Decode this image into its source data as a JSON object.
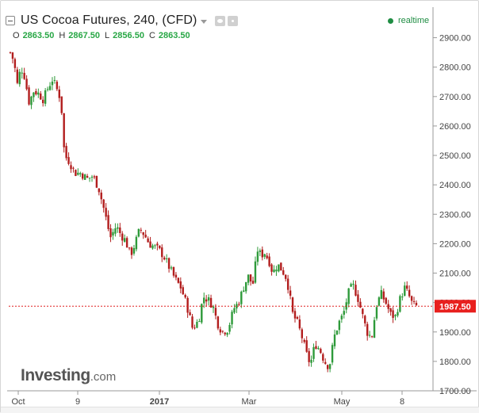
{
  "header": {
    "title": "US Cocoa Futures, 240, (CFD)",
    "status": "realtime"
  },
  "ohlc": {
    "open_label": "O",
    "open": "2863.50",
    "high_label": "H",
    "high": "2867.50",
    "low_label": "L",
    "low": "2856.50",
    "close_label": "C",
    "close": "2863.50"
  },
  "watermark": {
    "brand": "Investing",
    "suffix": ".com"
  },
  "colors": {
    "up": "#2e9a3a",
    "down": "#b21d1d",
    "price_line": "#e02020",
    "price_tag": "#e8201e",
    "status": "#1f8d43"
  },
  "chart_data": {
    "type": "candlestick",
    "title": "US Cocoa Futures, 240, (CFD)",
    "ylim": [
      1700,
      2950
    ],
    "y_ticks": [
      "2900.00",
      "2800.00",
      "2700.00",
      "2600.00",
      "2500.00",
      "2400.00",
      "2300.00",
      "2200.00",
      "2100.00",
      "2000.00",
      "1900.00",
      "1800.00",
      "1700.00"
    ],
    "x_ticks": [
      "Oct",
      "9",
      "2017",
      "Mar",
      "May",
      "8"
    ],
    "last_price": "1987.50",
    "last_value": 1987.5,
    "grid": true,
    "close_path": [
      [
        0,
        2850
      ],
      [
        0.6,
        2820
      ],
      [
        1.2,
        2740
      ],
      [
        1.8,
        2800
      ],
      [
        2.4,
        2770
      ],
      [
        3.2,
        2680
      ],
      [
        4.0,
        2720
      ],
      [
        4.8,
        2710
      ],
      [
        5.6,
        2690
      ],
      [
        6.4,
        2730
      ],
      [
        7.2,
        2760
      ],
      [
        8.0,
        2720
      ],
      [
        8.6,
        2690
      ],
      [
        9.2,
        2500
      ],
      [
        10.0,
        2480
      ],
      [
        11.0,
        2440
      ],
      [
        12.0,
        2440
      ],
      [
        13.0,
        2420
      ],
      [
        14.0,
        2430
      ],
      [
        15.0,
        2390
      ],
      [
        16.0,
        2310
      ],
      [
        17.0,
        2220
      ],
      [
        18.0,
        2260
      ],
      [
        18.8,
        2230
      ],
      [
        19.6,
        2210
      ],
      [
        20.4,
        2160
      ],
      [
        21.2,
        2200
      ],
      [
        22.0,
        2250
      ],
      [
        22.8,
        2230
      ],
      [
        23.6,
        2200
      ],
      [
        24.4,
        2190
      ],
      [
        25.2,
        2180
      ],
      [
        26.0,
        2160
      ],
      [
        27.0,
        2120
      ],
      [
        28.0,
        2080
      ],
      [
        29.0,
        2050
      ],
      [
        30.0,
        1990
      ],
      [
        31.0,
        1910
      ],
      [
        32.0,
        1940
      ],
      [
        32.8,
        2020
      ],
      [
        33.6,
        2010
      ],
      [
        34.4,
        1990
      ],
      [
        35.2,
        1930
      ],
      [
        36.0,
        1900
      ],
      [
        37.0,
        1910
      ],
      [
        38.0,
        1980
      ],
      [
        38.8,
        2000
      ],
      [
        39.6,
        2050
      ],
      [
        40.4,
        2090
      ],
      [
        41.2,
        2060
      ],
      [
        42.0,
        2180
      ],
      [
        42.6,
        2160
      ],
      [
        43.2,
        2170
      ],
      [
        44.0,
        2140
      ],
      [
        44.6,
        2100
      ],
      [
        45.4,
        2130
      ],
      [
        46.2,
        2110
      ],
      [
        47.0,
        2080
      ],
      [
        48.0,
        1960
      ],
      [
        48.8,
        1930
      ],
      [
        49.6,
        1880
      ],
      [
        50.4,
        1820
      ],
      [
        51.0,
        1790
      ],
      [
        51.8,
        1860
      ],
      [
        52.6,
        1840
      ],
      [
        53.4,
        1800
      ],
      [
        54.2,
        1780
      ],
      [
        55.0,
        1880
      ],
      [
        55.8,
        1930
      ],
      [
        56.6,
        1960
      ],
      [
        57.4,
        2030
      ],
      [
        58.2,
        2060
      ],
      [
        59.0,
        2020
      ],
      [
        59.8,
        1960
      ],
      [
        60.6,
        1900
      ],
      [
        61.4,
        1880
      ],
      [
        62.2,
        1990
      ],
      [
        63.0,
        2030
      ],
      [
        63.8,
        2000
      ],
      [
        64.6,
        1960
      ],
      [
        65.4,
        1950
      ],
      [
        66.2,
        2010
      ],
      [
        67.0,
        2050
      ],
      [
        67.6,
        2030
      ],
      [
        68.4,
        1990
      ],
      [
        69.0,
        1987.5
      ]
    ]
  }
}
